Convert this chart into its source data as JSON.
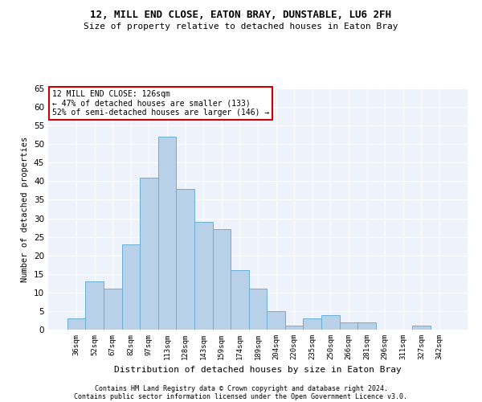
{
  "title1": "12, MILL END CLOSE, EATON BRAY, DUNSTABLE, LU6 2FH",
  "title2": "Size of property relative to detached houses in Eaton Bray",
  "xlabel": "Distribution of detached houses by size in Eaton Bray",
  "ylabel": "Number of detached properties",
  "categories": [
    "36sqm",
    "52sqm",
    "67sqm",
    "82sqm",
    "97sqm",
    "113sqm",
    "128sqm",
    "143sqm",
    "159sqm",
    "174sqm",
    "189sqm",
    "204sqm",
    "220sqm",
    "235sqm",
    "250sqm",
    "266sqm",
    "281sqm",
    "296sqm",
    "311sqm",
    "327sqm",
    "342sqm"
  ],
  "values": [
    3,
    13,
    11,
    23,
    41,
    52,
    38,
    29,
    27,
    16,
    11,
    5,
    1,
    3,
    4,
    2,
    2,
    0,
    0,
    1,
    0
  ],
  "bar_color": "#b8d0e8",
  "bar_edge_color": "#6baed6",
  "annotation_line1": "12 MILL END CLOSE: 126sqm",
  "annotation_line2": "← 47% of detached houses are smaller (133)",
  "annotation_line3": "52% of semi-detached houses are larger (146) →",
  "annotation_box_color": "#ffffff",
  "annotation_box_edge": "#cc0000",
  "ylim": [
    0,
    65
  ],
  "yticks": [
    0,
    5,
    10,
    15,
    20,
    25,
    30,
    35,
    40,
    45,
    50,
    55,
    60,
    65
  ],
  "footnote1": "Contains HM Land Registry data © Crown copyright and database right 2024.",
  "footnote2": "Contains public sector information licensed under the Open Government Licence v3.0.",
  "background_color": "#eef2fa",
  "grid_color": "#ffffff",
  "fig_bg": "#ffffff"
}
